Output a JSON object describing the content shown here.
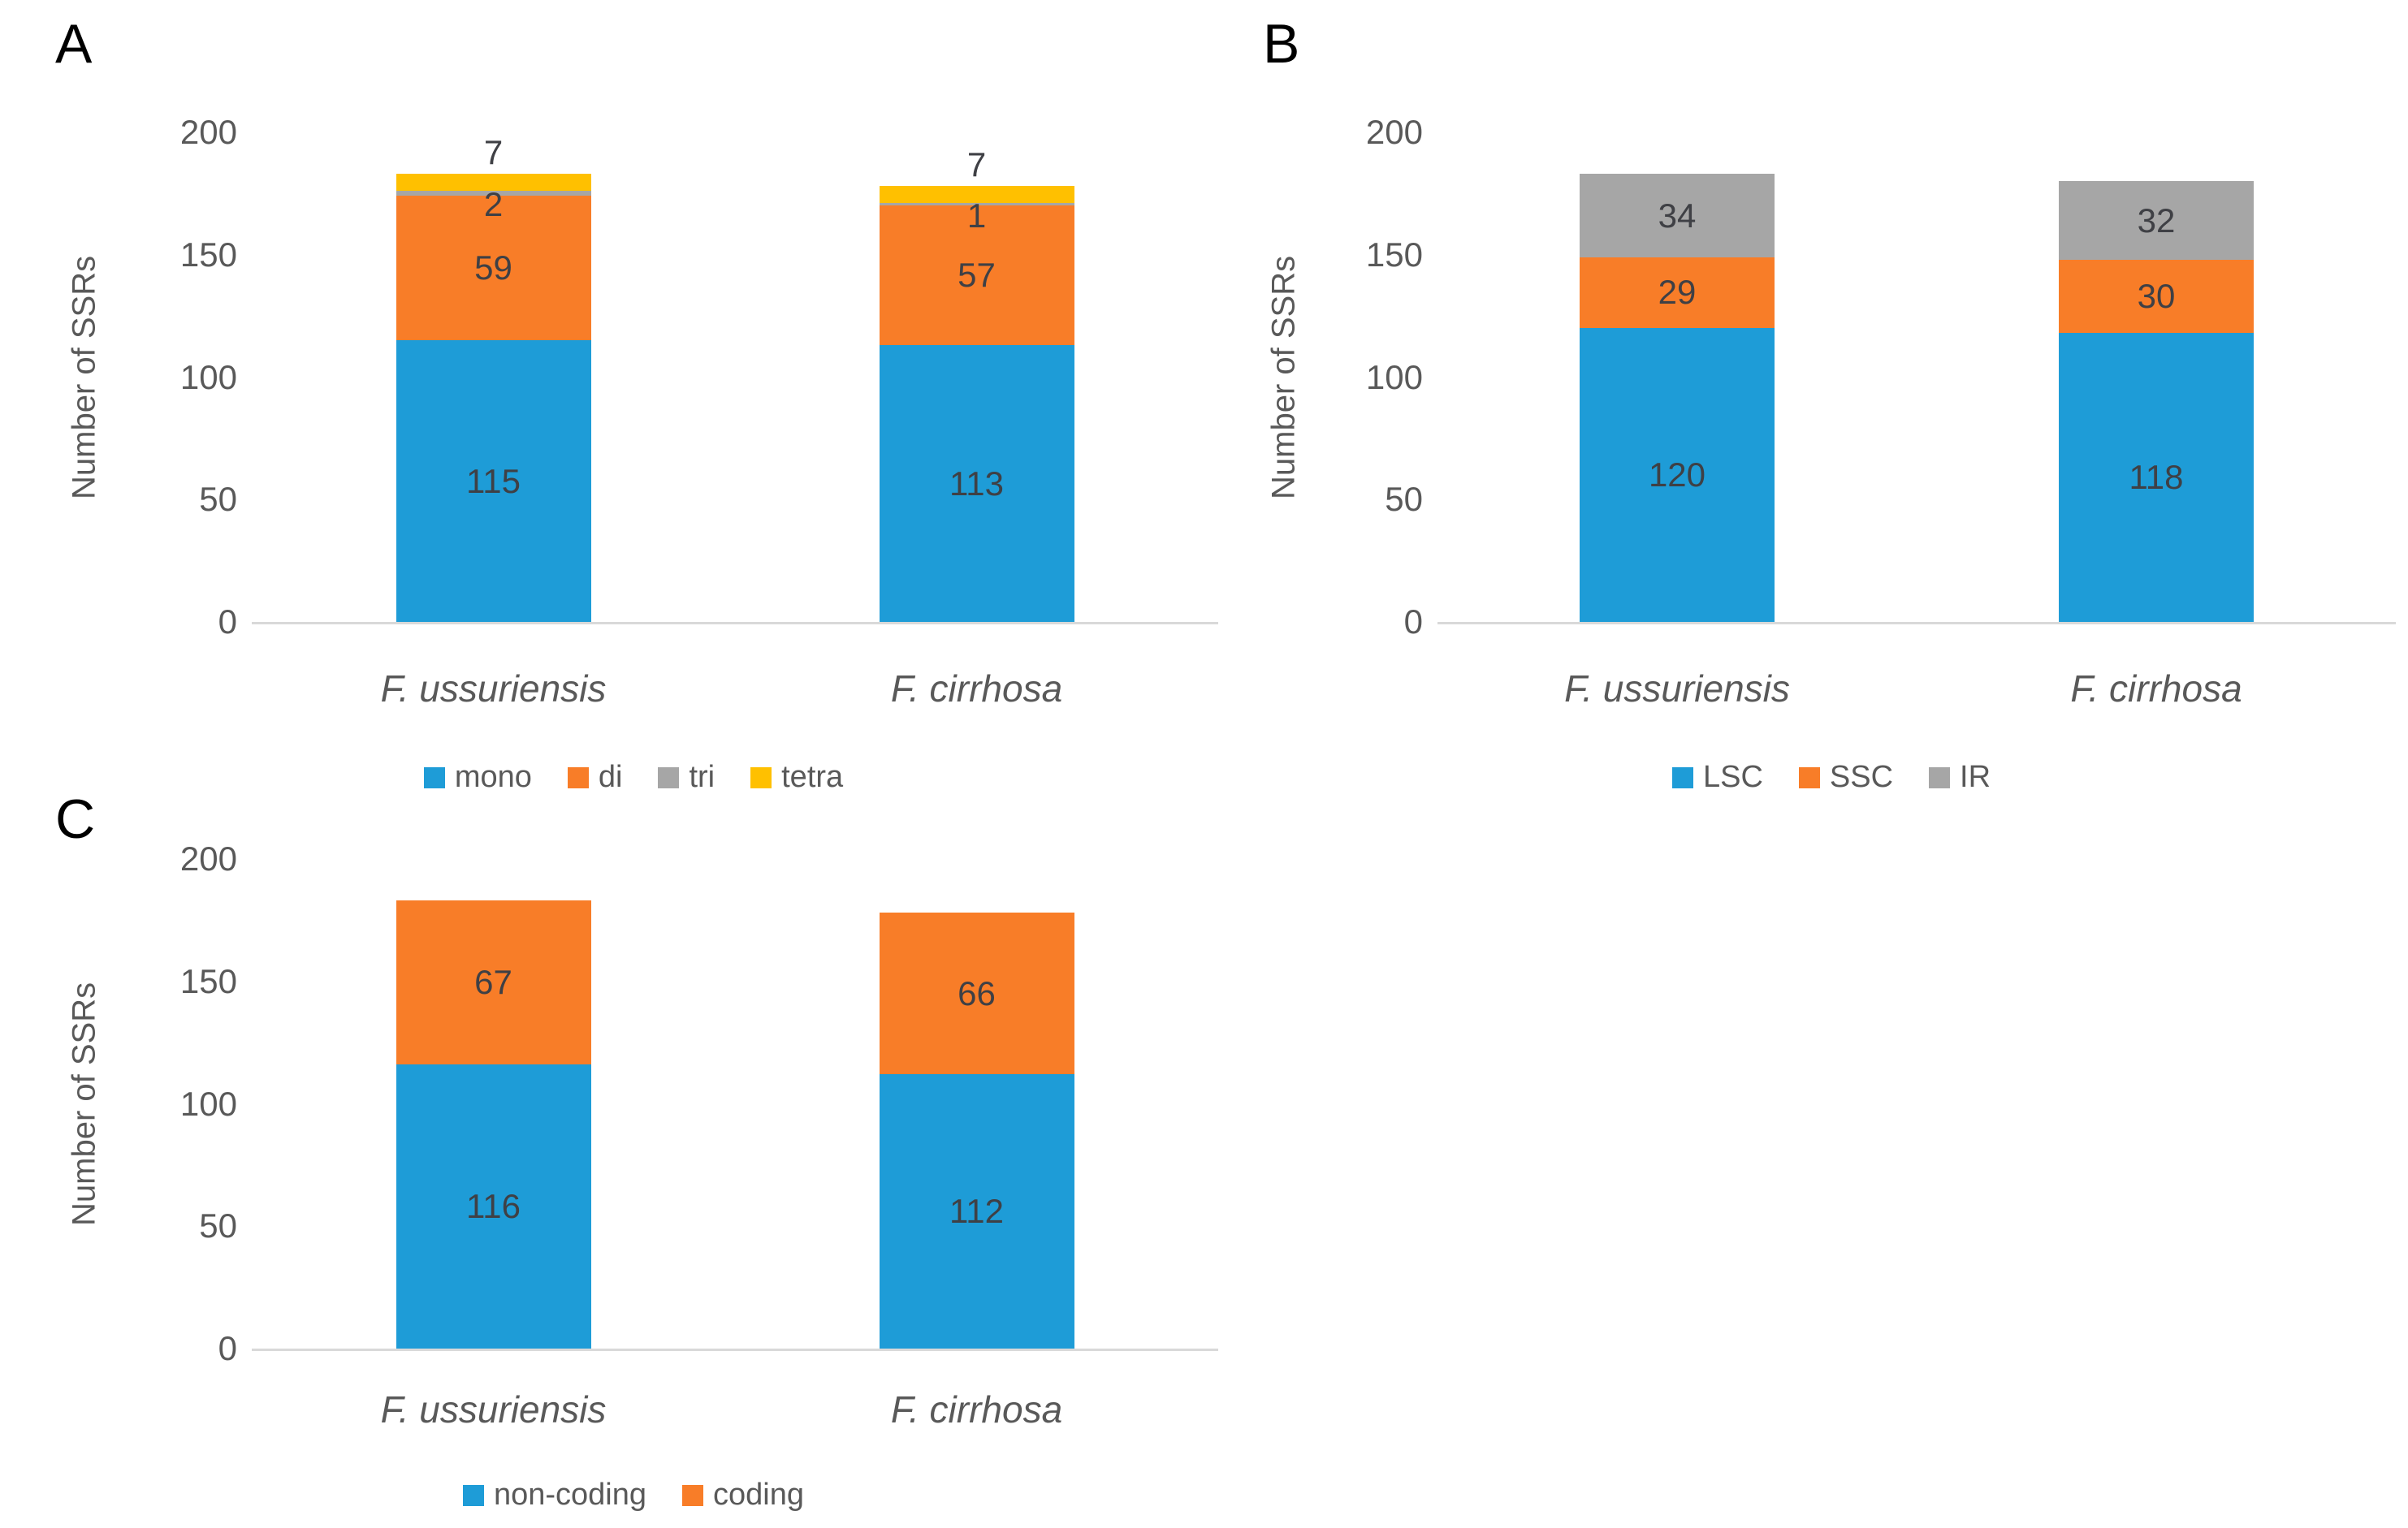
{
  "figure_title": "",
  "chart_data": [
    {
      "panel_label": "A",
      "type": "bar",
      "stacked": true,
      "title": "",
      "xlabel": "",
      "ylabel": "Number of SSRs",
      "categories": [
        "F. ussuriensis",
        "F. cirrhosa"
      ],
      "series": [
        {
          "name": "mono",
          "color": "#1E9CD7",
          "values": [
            115,
            113
          ]
        },
        {
          "name": "di",
          "color": "#F87D28",
          "values": [
            59,
            57
          ]
        },
        {
          "name": "tri",
          "color": "#A6A6A6",
          "values": [
            2,
            1
          ]
        },
        {
          "name": "tetra",
          "color": "#FFC000",
          "values": [
            7,
            7
          ]
        }
      ],
      "yticks": [
        0,
        50,
        100,
        150,
        200
      ],
      "ylim": [
        0,
        200
      ],
      "grid": false,
      "legend_position": "bottom",
      "data_labels": true
    },
    {
      "panel_label": "B",
      "type": "bar",
      "stacked": true,
      "title": "",
      "xlabel": "",
      "ylabel": "Number of SSRs",
      "categories": [
        "F. ussuriensis",
        "F. cirrhosa"
      ],
      "series": [
        {
          "name": "LSC",
          "color": "#1E9CD7",
          "values": [
            120,
            118
          ]
        },
        {
          "name": "SSC",
          "color": "#F87D28",
          "values": [
            29,
            30
          ]
        },
        {
          "name": "IR",
          "color": "#A6A6A6",
          "values": [
            34,
            32
          ]
        }
      ],
      "yticks": [
        0,
        50,
        100,
        150,
        200
      ],
      "ylim": [
        0,
        200
      ],
      "grid": false,
      "legend_position": "bottom",
      "data_labels": true
    },
    {
      "panel_label": "C",
      "type": "bar",
      "stacked": true,
      "title": "",
      "xlabel": "",
      "ylabel": "Number of SSRs",
      "categories": [
        "F. ussuriensis",
        "F. cirrhosa"
      ],
      "series": [
        {
          "name": "non-coding",
          "color": "#1E9CD7",
          "values": [
            116,
            112
          ]
        },
        {
          "name": "coding",
          "color": "#F87D28",
          "values": [
            67,
            66
          ]
        }
      ],
      "yticks": [
        0,
        50,
        100,
        150,
        200
      ],
      "ylim": [
        0,
        200
      ],
      "grid": false,
      "legend_position": "bottom",
      "data_labels": true
    }
  ],
  "style_colors": {
    "axis_line": "#D9D9D9",
    "tick_text": "#595959",
    "value_text": "#3F4045",
    "panel_letter": "#000000"
  }
}
